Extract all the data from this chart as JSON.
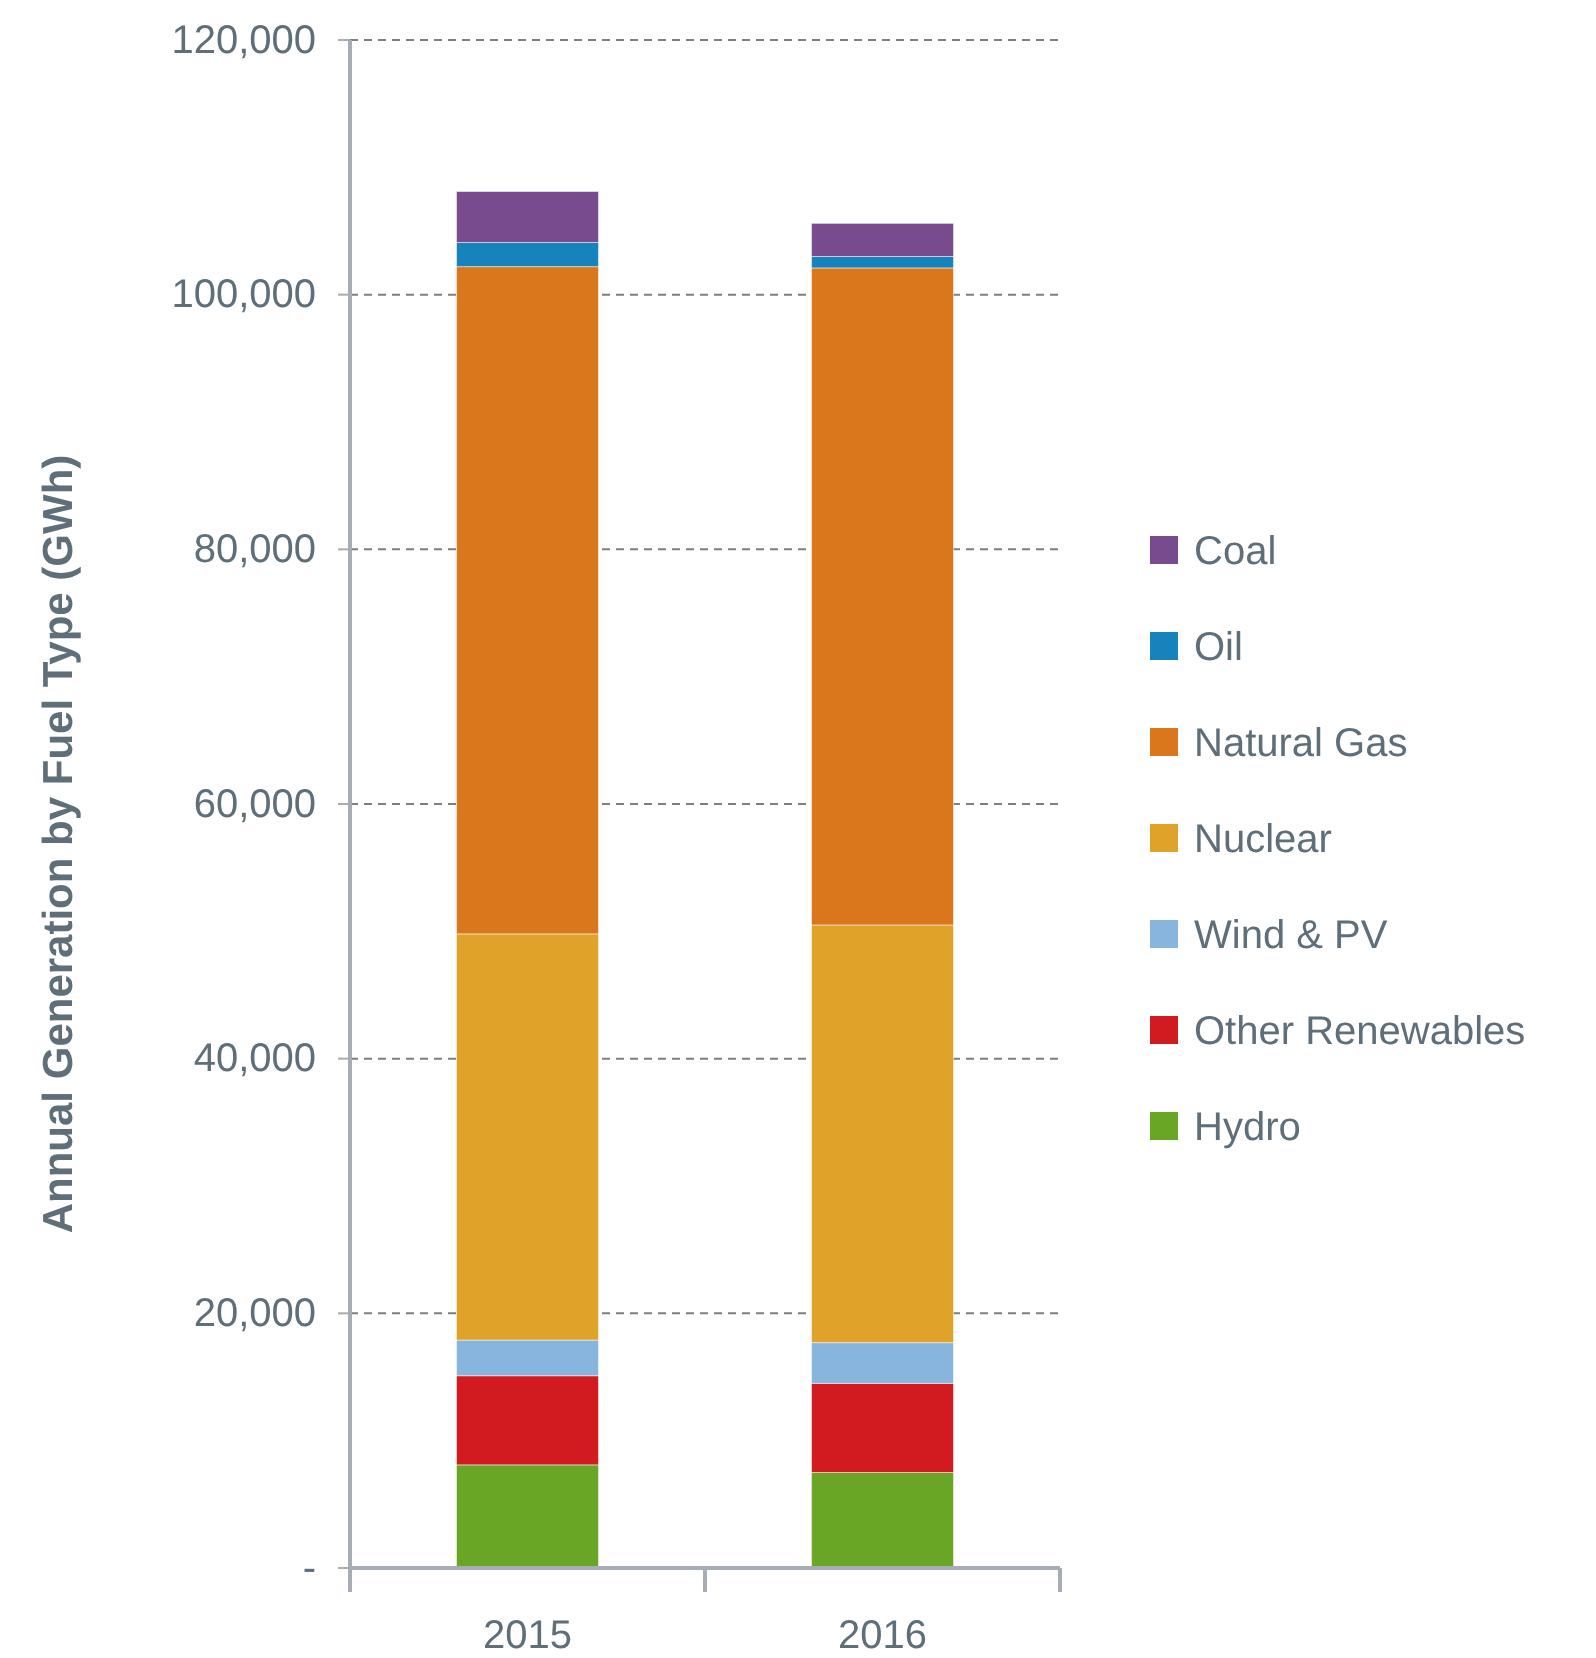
{
  "chart_data": {
    "type": "bar",
    "stacked": true,
    "ylabel": "Annual Generation by Fuel Type (GWh)",
    "categories": [
      "2015",
      "2016"
    ],
    "series": [
      {
        "name": "Hydro",
        "color": "#6aa626",
        "values": [
          8100,
          7500
        ]
      },
      {
        "name": "Other Renewables",
        "color": "#d21b20",
        "values": [
          7000,
          7000
        ]
      },
      {
        "name": "Wind & PV",
        "color": "#88b5de",
        "values": [
          2800,
          3200
        ]
      },
      {
        "name": "Nuclear",
        "color": "#dfa32a",
        "values": [
          31900,
          32800
        ]
      },
      {
        "name": "Natural Gas",
        "color": "#da771c",
        "values": [
          52400,
          51600
        ]
      },
      {
        "name": "Oil",
        "color": "#1783bd",
        "values": [
          1900,
          900
        ]
      },
      {
        "name": "Coal",
        "color": "#774b8d",
        "values": [
          4000,
          2600
        ]
      }
    ],
    "ylim": [
      0,
      120000
    ],
    "yticks": [
      {
        "value": 0,
        "label": "-"
      },
      {
        "value": 20000,
        "label": "20,000"
      },
      {
        "value": 40000,
        "label": "40,000"
      },
      {
        "value": 60000,
        "label": "60,000"
      },
      {
        "value": 80000,
        "label": "80,000"
      },
      {
        "value": 100000,
        "label": "100,000"
      },
      {
        "value": 120000,
        "label": "120,000"
      }
    ],
    "grid": "y",
    "legend": "right"
  }
}
